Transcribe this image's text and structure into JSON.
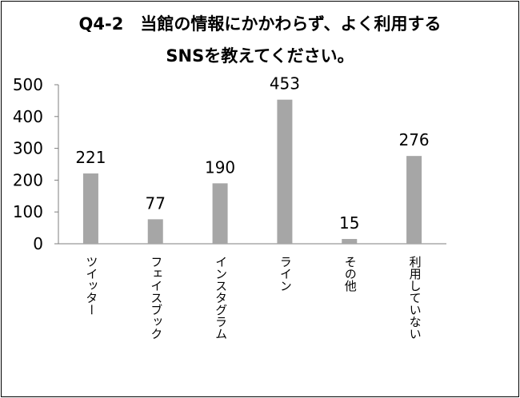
{
  "title_line1": "Q4-2　当館の情報にかかわらず、よく利用する",
  "title_line2": "SNSを教えてください。",
  "chart_data": {
    "type": "bar",
    "title": "Q4-2　当館の情報にかかわらず、よく利用するSNSを教えてください。",
    "categories": [
      "ツイッター",
      "フェイスブック",
      "インスタグラム",
      "ライン",
      "その他",
      "利用していない"
    ],
    "values": [
      221,
      77,
      190,
      453,
      15,
      276
    ],
    "ylim": [
      0,
      500
    ],
    "yticks": [
      0,
      100,
      200,
      300,
      400,
      500
    ],
    "data_labels": true,
    "grid": false,
    "legend": "none",
    "bar_color": "#a6a6a6",
    "axis_color": "#7f7f7f"
  }
}
